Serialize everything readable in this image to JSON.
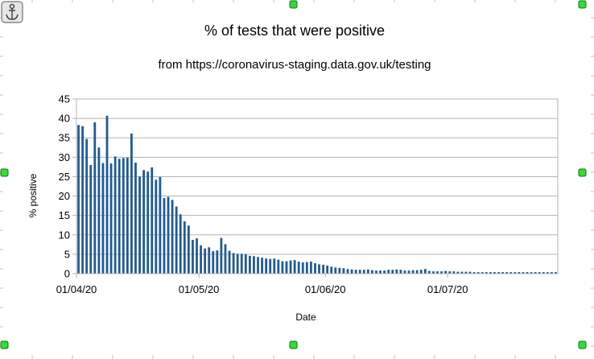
{
  "editor": {
    "anchor_icon": "anchor-icon",
    "handle_color": "#33dd33"
  },
  "chart_data": {
    "type": "bar",
    "title": "% of tests that were positive",
    "subtitle": "from https://coronavirus-staging.data.gov.uk/testing",
    "xlabel": "Date",
    "ylabel": "% positive",
    "ylim": [
      0,
      45
    ],
    "yticks": [
      "0",
      "5",
      "10",
      "15",
      "20",
      "25",
      "30",
      "35",
      "40",
      "45"
    ],
    "xticks": [
      "01/04/20",
      "01/05/20",
      "01/06/20",
      "01/07/20"
    ],
    "grid": true,
    "bar_color": "#1f5a96",
    "start_date": "01/04/20",
    "series": [
      {
        "values": [
          38.3,
          38,
          34.7,
          28,
          39,
          32.5,
          28.5,
          40.7,
          28.4,
          30.2,
          29.6,
          29.8,
          29.9,
          36.1,
          28.6,
          25,
          26.7,
          26.3,
          27.4,
          24.2,
          24.9,
          19.5,
          19.8,
          19,
          17.3,
          15.3,
          13.5,
          12.4,
          8.7,
          9.1,
          7.3,
          6.5,
          6.8,
          5.8,
          6,
          9.2,
          7.6,
          5.9,
          5.3,
          5.1,
          5.1,
          5,
          4.6,
          4.5,
          4.3,
          4.1,
          3.9,
          3.8,
          3.9,
          3.6,
          3.2,
          3.2,
          3.4,
          3.5,
          3.1,
          2.9,
          3,
          3.1,
          2.7,
          2.4,
          2.3,
          2.1,
          1.8,
          1.6,
          1.5,
          1.4,
          1.2,
          1.1,
          1,
          1,
          1,
          1.1,
          0.9,
          0.8,
          0.8,
          0.8,
          1,
          1,
          1.1,
          1,
          0.8,
          0.8,
          0.9,
          0.9,
          1,
          1.2,
          0.7,
          0.6,
          0.6,
          0.6,
          0.7,
          0.6,
          0.6,
          0.5,
          0.5,
          0.5,
          0.5,
          0.4,
          0.4,
          0.4,
          0.4,
          0.4,
          0.4,
          0.4,
          0.4,
          0.4,
          0.4,
          0.4,
          0.4,
          0.4,
          0.4,
          0.4,
          0.4,
          0.4,
          0.4,
          0.4,
          0.4,
          0.4
        ]
      }
    ]
  }
}
